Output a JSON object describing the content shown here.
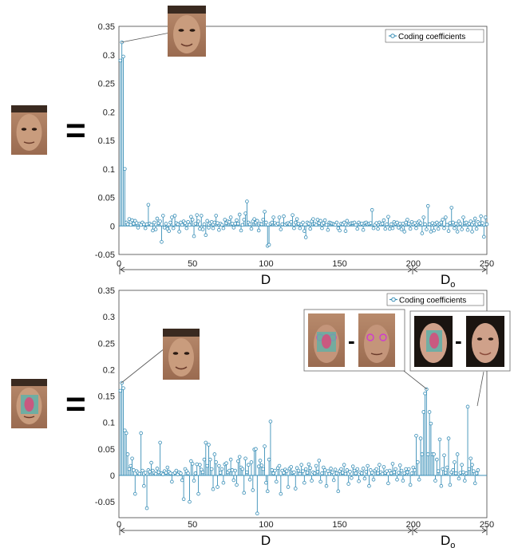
{
  "chart_data": [
    {
      "type": "stem",
      "panel": "top",
      "xlim": [
        0,
        250
      ],
      "ylim": [
        -0.05,
        0.35
      ],
      "xticks": [
        "0",
        "50",
        "100",
        "150",
        "200",
        "250"
      ],
      "yticks": [
        "-0.05",
        "0",
        "0.05",
        "0.1",
        "0.15",
        "0.2",
        "0.25",
        "0.3",
        "0.35"
      ],
      "legend": "Coding coefficients",
      "legend_position": "top-right",
      "segments": [
        {
          "label": "D",
          "range": [
            0,
            200
          ]
        },
        {
          "label": "D",
          "subscript": "o",
          "range": [
            200,
            250
          ]
        }
      ],
      "color": "#3a8fb7",
      "series": [
        {
          "name": "Coding coefficients",
          "values": [
            0.29,
            0.322,
            0.297,
            0.1,
            0.006,
            0.003,
            0.012,
            0.002,
            0.01,
            0.004,
            0.009,
            0.005,
            -0.003,
            0.004,
            0.002,
            0.006,
            0.003,
            -0.004,
            0.003,
            0.037,
            0.004,
            0.002,
            -0.008,
            0.006,
            -0.006,
            0.013,
            0.005,
            0.008,
            -0.028,
            0.018,
            -0.003,
            0.004,
            -0.005,
            -0.009,
            0.006,
            0.015,
            -0.004,
            0.018,
            0.005,
            0.003,
            -0.01,
            0.006,
            0.002,
            0.008,
            0.005,
            -0.004,
            0.007,
            0.002,
            0.016,
            0.011,
            -0.018,
            0.004,
            0.019,
            0.008,
            -0.005,
            0.018,
            -0.006,
            0.003,
            -0.016,
            0.009,
            -0.003,
            0.005,
            0.007,
            -0.004,
            0.006,
            0.018,
            0.005,
            -0.007,
            0.004,
            0.002,
            -0.004,
            0.011,
            0.005,
            0.008,
            0.007,
            0.015,
            0.004,
            -0.003,
            0.004,
            0.01,
            0.004,
            0.02,
            -0.008,
            0.002,
            0.011,
            0.022,
            0.043,
            0.006,
            0.003,
            -0.005,
            0.008,
            0.012,
            0.006,
            0.009,
            -0.008,
            0.004,
            0.003,
            0.011,
            0.025,
            0.006,
            -0.035,
            -0.033,
            0.004,
            0.006,
            0.015,
            0.005,
            0.002,
            0.004,
            0.015,
            -0.006,
            0.003,
            0.017,
            0.002,
            0.004,
            0.005,
            0.003,
            0.007,
            0.019,
            -0.004,
            0.006,
            0.012,
            0.004,
            -0.004,
            0.003,
            0.006,
            -0.009,
            -0.02,
            0.006,
            0.004,
            -0.005,
            0.008,
            0.012,
            0.004,
            0.002,
            0.011,
            0.005,
            0.009,
            -0.004,
            0.005,
            0.01,
            0.002,
            -0.007,
            0.006,
            0.005,
            0.004,
            0.003,
            0.002,
            0.006,
            -0.004,
            -0.008,
            0.004,
            0.003,
            0.006,
            -0.009,
            0.009,
            0.002,
            0.004,
            0.005,
            0.005,
            0.006,
            0.002,
            -0.005,
            0.006,
            0.003,
            0.004,
            -0.007,
            0.005,
            0.006,
            0.003,
            0.004,
            0.005,
            0.028,
            -0.004,
            0.002,
            0.005,
            -0.005,
            0.006,
            0.003,
            0.004,
            0.01,
            -0.005,
            0.003,
            0.016,
            -0.005,
            0.003,
            -0.004,
            0.007,
            0.004,
            0.006,
            -0.003,
            0.004,
            -0.006,
            0.004,
            -0.01,
            0.006,
            0.011,
            0.004,
            -0.005,
            0.007,
            0.003,
            0.005,
            -0.004,
            0.006,
            0.008,
            0.005,
            -0.013,
            0.015,
            0.003,
            -0.006,
            0.035,
            0.003,
            -0.01,
            0.005,
            -0.008,
            0.004,
            0.006,
            -0.005,
            0.004,
            0.006,
            0.011,
            -0.004,
            0.015,
            0.002,
            -0.009,
            0.005,
            0.032,
            0.006,
            -0.004,
            0.004,
            -0.01,
            0.008,
            0.004,
            -0.006,
            0.015,
            0.005,
            0.006,
            -0.007,
            0.004,
            0.008,
            -0.01,
            0.006,
            0.013,
            -0.005,
            0.007,
            0.004,
            0.017,
            0.005,
            -0.019,
            0.015,
            0.003
          ]
        }
      ]
    },
    {
      "type": "stem",
      "panel": "bottom",
      "xlim": [
        0,
        250
      ],
      "ylim": [
        -0.08,
        0.35
      ],
      "xticks": [
        "0",
        "50",
        "100",
        "150",
        "200",
        "250"
      ],
      "yticks": [
        "-0.05",
        "0",
        "0.05",
        "0.1",
        "0.15",
        "0.2",
        "0.25",
        "0.3",
        "0.35"
      ],
      "legend": "Coding coefficients",
      "legend_position": "top-right",
      "segments": [
        {
          "label": "D",
          "range": [
            0,
            200
          ]
        },
        {
          "label": "D",
          "subscript": "o",
          "range": [
            200,
            250
          ]
        }
      ],
      "color": "#3a8fb7",
      "series": [
        {
          "name": "Coding coefficients",
          "values": [
            0.16,
            0.175,
            0.165,
            0.085,
            0.08,
            0.04,
            0.012,
            0.018,
            0.032,
            0.01,
            -0.035,
            0.008,
            0.005,
            0.003,
            0.08,
            0.009,
            -0.02,
            0.005,
            -0.062,
            0.01,
            0.007,
            0.024,
            0.009,
            0.005,
            0.003,
            0.013,
            0.006,
            0.062,
            0.004,
            0.002,
            0.008,
            0.005,
            0.015,
            0.007,
            0.004,
            -0.012,
            0.003,
            0.005,
            0.009,
            0.002,
            0.006,
            0.004,
            -0.009,
            -0.045,
            0.012,
            0.008,
            0.004,
            -0.05,
            0.027,
            0.022,
            -0.01,
            0.004,
            0.021,
            -0.035,
            0.02,
            0.011,
            0.006,
            0.03,
            0.062,
            0.018,
            0.058,
            0.03,
            0.012,
            -0.026,
            0.04,
            0.025,
            -0.022,
            0.018,
            0.005,
            0.012,
            -0.014,
            0.021,
            0.023,
            0.006,
            0.009,
            0.03,
            0.01,
            -0.009,
            0.009,
            -0.018,
            0.027,
            0.035,
            0.015,
            0.012,
            -0.033,
            0.032,
            0.006,
            0.02,
            -0.008,
            0.025,
            -0.028,
            0.049,
            0.05,
            -0.072,
            0.017,
            0.028,
            0.019,
            0.012,
            0.055,
            -0.014,
            -0.03,
            0.03,
            0.102,
            0.01,
            0.004,
            0.009,
            -0.012,
            0.014,
            0.018,
            -0.035,
            0.009,
            0.005,
            0.011,
            0.008,
            -0.022,
            0.013,
            0.016,
            0.005,
            0.006,
            -0.025,
            0.014,
            0.009,
            0.003,
            0.02,
            0.008,
            -0.014,
            0.012,
            0.005,
            0.021,
            0.014,
            -0.01,
            0.006,
            0.004,
            0.018,
            0.007,
            0.028,
            -0.012,
            0.004,
            0.015,
            0.01,
            -0.02,
            0.008,
            0.003,
            0.013,
            0.006,
            -0.009,
            0.011,
            0.004,
            -0.03,
            0.008,
            0.012,
            0.005,
            0.02,
            0.003,
            0.01,
            -0.016,
            0.007,
            -0.005,
            0.017,
            0.009,
            0.004,
            0.012,
            -0.011,
            0.006,
            0.004,
            0.013,
            -0.006,
            0.007,
            0.018,
            -0.02,
            0.01,
            0.005,
            -0.008,
            0.009,
            0.012,
            0.004,
            0.02,
            0.006,
            0.003,
            0.016,
            0.005,
            0.008,
            -0.015,
            0.009,
            0.004,
            0.022,
            0.006,
            0.012,
            -0.008,
            0.005,
            0.019,
            0.009,
            -0.01,
            0.004,
            0.012,
            0.006,
            0.012,
            -0.018,
            0.004,
            0.015,
            0.01,
            0.075,
            0.025,
            -0.008,
            0.07,
            0.04,
            0.12,
            0.155,
            0.163,
            0.04,
            0.12,
            0.098,
            0.04,
            0.04,
            -0.01,
            0.03,
            0.008,
            0.068,
            -0.02,
            0.012,
            0.038,
            0.005,
            0.015,
            0.07,
            -0.018,
            0.006,
            0.01,
            0.025,
            0.004,
            0.04,
            -0.006,
            0.005,
            0.02,
            0.006,
            -0.01,
            0.004,
            0.13,
            0.012,
            0.032,
            0.02,
            0.008,
            -0.015,
            0.004,
            0.01
          ]
        }
      ]
    }
  ],
  "equals_sign": "=",
  "minus_sign": "-",
  "icons": [
    "face-photo",
    "occluded-face-photo",
    "face-difference-callout"
  ]
}
